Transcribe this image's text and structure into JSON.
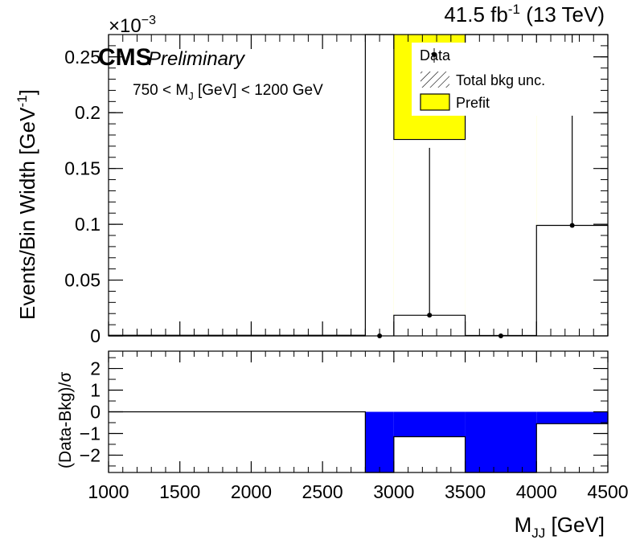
{
  "chart_data": [
    {
      "type": "bar",
      "panel": "main",
      "x_label_sub": "JJ",
      "ylabel": "Events/Bin Width [GeV",
      "ylabel_sup": "-1",
      "ylabel_close": "]",
      "exponent_label": "×10",
      "exponent_power": "−3",
      "lumi_value": "41.5 fb",
      "lumi_sup": "-1",
      "lumi_energy": " (13 TeV)",
      "cms_label": "CMS",
      "preliminary_label": "Preliminary",
      "cut_label": {
        "pre": "750 < M",
        "sub": "J",
        "post": " [GeV] < 1200 GeV"
      },
      "xlim": [
        1000,
        4500
      ],
      "ylim": [
        0,
        0.27
      ],
      "yticks": [
        {
          "value": 0,
          "label": "0"
        },
        {
          "value": 0.05,
          "label": "0.05"
        },
        {
          "value": 0.1,
          "label": "0.1"
        },
        {
          "value": 0.15,
          "label": "0.15"
        },
        {
          "value": 0.2,
          "label": "0.2"
        },
        {
          "value": 0.25,
          "label": "0.25"
        }
      ],
      "legend": {
        "position": "top-right",
        "entries": [
          {
            "label": "Data",
            "kind": "marker"
          },
          {
            "label": "Total bkg unc.",
            "kind": "hatch"
          },
          {
            "label": "Prefit",
            "kind": "fill",
            "color": "#ffff00"
          }
        ]
      },
      "prefit": {
        "color": "#ffff00",
        "bins": [
          {
            "x0": 2800,
            "x1": 3000,
            "value": 0.27
          },
          {
            "x0": 3000,
            "x1": 3500,
            "value": 0.27
          },
          {
            "x0": 3500,
            "x1": 4000,
            "value": 0.27
          },
          {
            "x0": 4000,
            "x1": 4500,
            "value": 0.27
          }
        ]
      },
      "background": {
        "bins": [
          {
            "x0": 1000,
            "x1": 2800,
            "value": 0
          },
          {
            "x0": 2800,
            "x1": 3000,
            "value": 0.27
          },
          {
            "x0": 3000,
            "x1": 3500,
            "value": 0.176
          },
          {
            "x0": 3500,
            "x1": 4000,
            "value": 0.27
          },
          {
            "x0": 4000,
            "x1": 4500,
            "value": 0.27
          }
        ]
      },
      "fit_lines": [
        {
          "x0": 1000,
          "x1": 2800,
          "value": 0.0006
        },
        {
          "x0": 3000,
          "x1": 3500,
          "value": 0.0185
        },
        {
          "x0": 3500,
          "x1": 4000,
          "value": 0.0004
        },
        {
          "x0": 4000,
          "x1": 4500,
          "value": 0.099
        }
      ],
      "data_points": [
        {
          "x": 2900,
          "y": 0,
          "yerr_up": 0
        },
        {
          "x": 3250,
          "y": 0.0185,
          "yerr_up": 0.15
        },
        {
          "x": 3750,
          "y": 0,
          "yerr_up": 0
        },
        {
          "x": 4250,
          "y": 0.099,
          "yerr_up": 0.27
        }
      ]
    },
    {
      "type": "bar",
      "panel": "ratio",
      "xlabel": "M",
      "ylabel": "(Data-Bkg)/σ",
      "xlim": [
        1000,
        4500
      ],
      "ylim": [
        -2.8,
        2.8
      ],
      "yticks": [
        {
          "value": -2,
          "label": "−2"
        },
        {
          "value": -1,
          "label": "−1"
        },
        {
          "value": 0,
          "label": "0"
        },
        {
          "value": 1,
          "label": "1"
        },
        {
          "value": 2,
          "label": "2"
        }
      ],
      "xticks": [
        {
          "value": 1000,
          "label": "1000"
        },
        {
          "value": 1500,
          "label": "1500"
        },
        {
          "value": 2000,
          "label": "2000"
        },
        {
          "value": 2500,
          "label": "2500"
        },
        {
          "value": 3000,
          "label": "3000"
        },
        {
          "value": 3500,
          "label": "3500"
        },
        {
          "value": 4000,
          "label": "4000"
        },
        {
          "value": 4500,
          "label": "4500"
        }
      ],
      "fill_color": "#0000ff",
      "bins": [
        {
          "x0": 1000,
          "x1": 2800,
          "value": 0
        },
        {
          "x0": 2800,
          "x1": 3000,
          "value": -2.8
        },
        {
          "x0": 3000,
          "x1": 3500,
          "value": -1.15
        },
        {
          "x0": 3500,
          "x1": 4000,
          "value": -2.8
        },
        {
          "x0": 4000,
          "x1": 4500,
          "value": -0.55
        }
      ]
    }
  ]
}
